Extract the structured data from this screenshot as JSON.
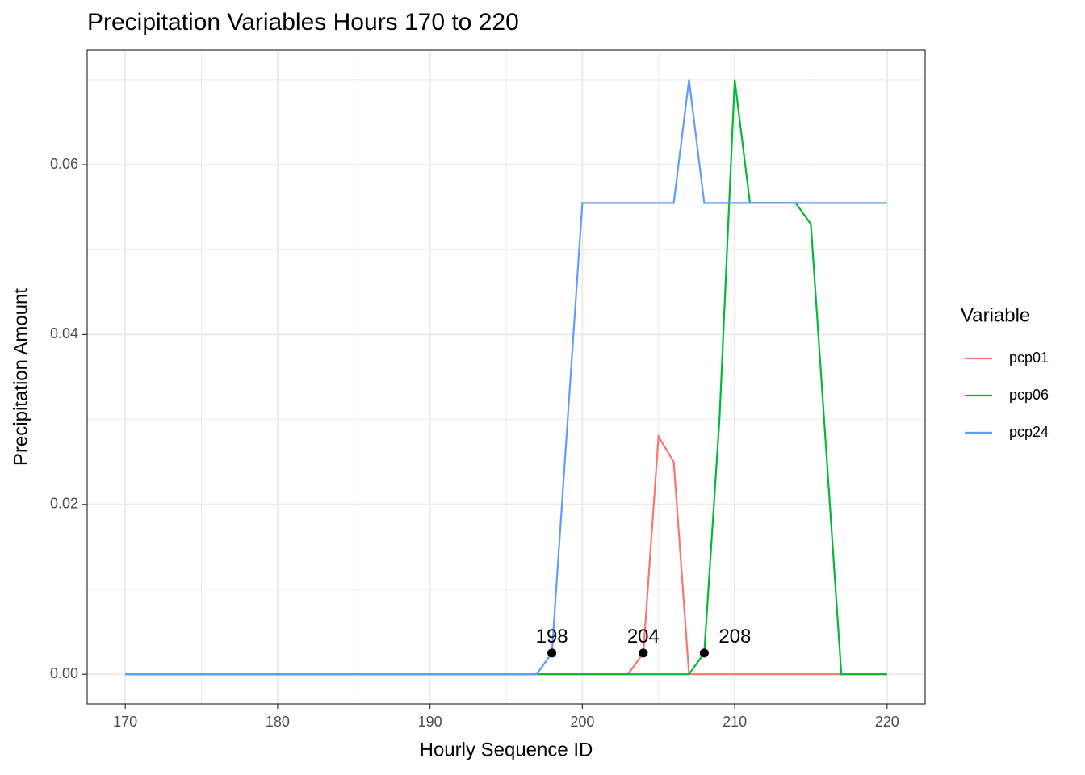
{
  "chart_data": {
    "type": "line",
    "title": "Precipitation Variables Hours 170 to 220",
    "x_label": "Hourly Sequence ID",
    "y_label": "Precipitation Amount",
    "legend_title": "Variable",
    "x": [
      170,
      171,
      172,
      173,
      174,
      175,
      176,
      177,
      178,
      179,
      180,
      181,
      182,
      183,
      184,
      185,
      186,
      187,
      188,
      189,
      190,
      191,
      192,
      193,
      194,
      195,
      196,
      197,
      198,
      199,
      200,
      201,
      202,
      203,
      204,
      205,
      206,
      207,
      208,
      209,
      210,
      211,
      212,
      213,
      214,
      215,
      216,
      217,
      218,
      219,
      220
    ],
    "series": [
      {
        "name": "pcp01",
        "color": "#F8766D",
        "values": [
          0,
          0,
          0,
          0,
          0,
          0,
          0,
          0,
          0,
          0,
          0,
          0,
          0,
          0,
          0,
          0,
          0,
          0,
          0,
          0,
          0,
          0,
          0,
          0,
          0,
          0,
          0,
          0,
          0,
          0,
          0,
          0,
          0,
          0,
          0.0025,
          0.028,
          0.025,
          0,
          0,
          0,
          0,
          0,
          0,
          0,
          0,
          0,
          0,
          0,
          0,
          0,
          0
        ]
      },
      {
        "name": "pcp06",
        "color": "#00BA38",
        "values": [
          0,
          0,
          0,
          0,
          0,
          0,
          0,
          0,
          0,
          0,
          0,
          0,
          0,
          0,
          0,
          0,
          0,
          0,
          0,
          0,
          0,
          0,
          0,
          0,
          0,
          0,
          0,
          0,
          0,
          0,
          0,
          0,
          0,
          0,
          0,
          0,
          0,
          0,
          0.0025,
          0.03,
          0.07,
          0.0555,
          0.0555,
          0.0555,
          0.0555,
          0.053,
          0.0265,
          0,
          0,
          0,
          0
        ]
      },
      {
        "name": "pcp24",
        "color": "#619CFF",
        "values": [
          0,
          0,
          0,
          0,
          0,
          0,
          0,
          0,
          0,
          0,
          0,
          0,
          0,
          0,
          0,
          0,
          0,
          0,
          0,
          0,
          0,
          0,
          0,
          0,
          0,
          0,
          0,
          0,
          0.0025,
          0.029,
          0.0555,
          0.0555,
          0.0555,
          0.0555,
          0.0555,
          0.0555,
          0.0555,
          0.07,
          0.0555,
          0.0555,
          0.0555,
          0.0555,
          0.0555,
          0.0555,
          0.0555,
          0.0555,
          0.0555,
          0.0555,
          0.0555,
          0.0555,
          0.0555
        ]
      }
    ],
    "points": {
      "x": [
        198,
        204,
        208
      ],
      "y": [
        0.0025,
        0.0025,
        0.0025
      ],
      "color": "#000000"
    },
    "xlim": [
      167.5,
      222.5
    ],
    "ylim": [
      -0.0035,
      0.0735
    ],
    "xticks": [
      170,
      180,
      190,
      200,
      210,
      220
    ],
    "yticks": [
      {
        "value": 0,
        "label": "0.00"
      },
      0.02,
      0.04,
      0.06
    ],
    "grid": true,
    "legend_position": "right"
  }
}
